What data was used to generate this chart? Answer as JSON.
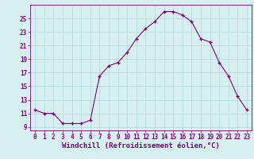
{
  "x": [
    0,
    1,
    2,
    3,
    4,
    5,
    6,
    7,
    8,
    9,
    10,
    11,
    12,
    13,
    14,
    15,
    16,
    17,
    18,
    19,
    20,
    21,
    22,
    23
  ],
  "y": [
    11.5,
    11.0,
    11.0,
    9.5,
    9.5,
    9.5,
    10.0,
    16.5,
    18.0,
    18.5,
    20.0,
    22.0,
    23.5,
    24.5,
    26.0,
    26.0,
    25.5,
    24.5,
    22.0,
    21.5,
    18.5,
    16.5,
    13.5,
    11.5
  ],
  "line_color": "#800080",
  "marker": "+",
  "marker_size": 3,
  "bg_color": "#d6f0f0",
  "grid_color": "#b0d8d8",
  "xlabel": "Windchill (Refroidissement éolien,°C)",
  "xlabel_fontsize": 6.5,
  "ylim": [
    8.5,
    27
  ],
  "xlim": [
    -0.5,
    23.5
  ],
  "yticks": [
    9,
    11,
    13,
    15,
    17,
    19,
    21,
    23,
    25
  ],
  "xticks": [
    0,
    1,
    2,
    3,
    4,
    5,
    6,
    7,
    8,
    9,
    10,
    11,
    12,
    13,
    14,
    15,
    16,
    17,
    18,
    19,
    20,
    21,
    22,
    23
  ],
  "tick_fontsize": 5.5,
  "linewidth": 0.8,
  "markeredgewidth": 1.0
}
